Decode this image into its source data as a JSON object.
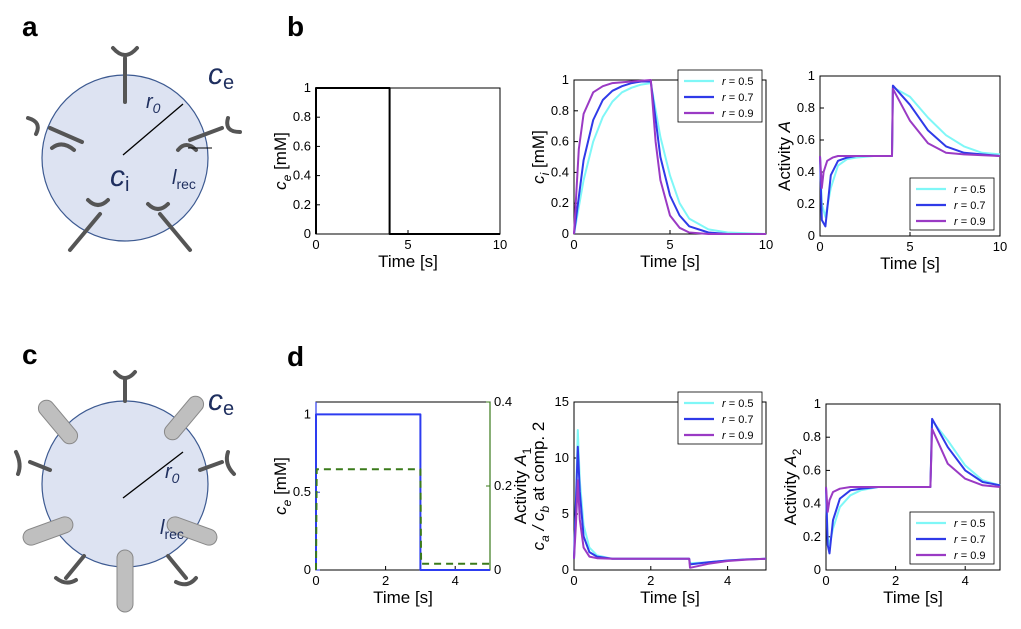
{
  "panel_letters": {
    "a": "a",
    "b": "b",
    "c": "c",
    "d": "d"
  },
  "diagram_a": {
    "outside_conc": "c",
    "outside_sub": "e",
    "inside_conc": "c",
    "inside_sub": "i",
    "radius": "r",
    "radius_sub": "0",
    "receptor_len": "l",
    "receptor_len_sub": "rec"
  },
  "diagram_c": {
    "outside_conc": "c",
    "outside_sub": "e",
    "radius": "r",
    "radius_sub": "0",
    "receptor_len": "l",
    "receptor_len_sub": "rec"
  },
  "colors": {
    "r05": "#7ff7f7",
    "r07": "#2f3ae8",
    "r09": "#9a3ac4",
    "step": "#000000",
    "step_d": "#2d3cf0",
    "activity_d": "#3a7a1a"
  },
  "chart_data": [
    {
      "id": "b1",
      "type": "line",
      "xlabel": "Time [s]",
      "ylabel_main": "c",
      "ylabel_sub": "e",
      "ylabel_unit": " [mM]",
      "xlim": [
        0,
        10
      ],
      "ylim": [
        0,
        1
      ],
      "xticks": [
        "0",
        "5",
        "10"
      ],
      "xtick_values": [
        0,
        5,
        10
      ],
      "yticks": [
        "0",
        "0.2",
        "0.4",
        "0.6",
        "0.8",
        "1"
      ],
      "ytick_values": [
        0,
        0.2,
        0.4,
        0.6,
        0.8,
        1
      ],
      "series": [
        {
          "name": "c_e",
          "x": [
            0,
            0,
            4,
            4,
            10
          ],
          "y": [
            0,
            1,
            1,
            0,
            0
          ]
        }
      ]
    },
    {
      "id": "b2",
      "type": "line",
      "xlabel": "Time [s]",
      "ylabel_main": "c",
      "ylabel_sub": "i",
      "ylabel_unit": " [mM]",
      "xlim": [
        0,
        10
      ],
      "ylim": [
        0,
        1
      ],
      "xticks": [
        "0",
        "5",
        "10"
      ],
      "xtick_values": [
        0,
        5,
        10
      ],
      "yticks": [
        "0",
        "0.2",
        "0.4",
        "0.6",
        "0.8",
        "1"
      ],
      "ytick_values": [
        0,
        0.2,
        0.4,
        0.6,
        0.8,
        1
      ],
      "legend": [
        "r = 0.5",
        "r = 0.7",
        "r = 0.9"
      ],
      "legend_position": "top-right",
      "series": [
        {
          "name": "r = 0.5",
          "x": [
            0,
            0.5,
            1,
            1.5,
            2,
            2.5,
            3,
            3.5,
            4,
            4.5,
            5,
            5.5,
            6,
            7,
            8,
            10
          ],
          "y": [
            0,
            0.35,
            0.6,
            0.76,
            0.86,
            0.92,
            0.95,
            0.97,
            0.98,
            0.63,
            0.38,
            0.2,
            0.1,
            0.03,
            0.01,
            0
          ]
        },
        {
          "name": "r = 0.7",
          "x": [
            0,
            0.5,
            1,
            1.5,
            2,
            2.5,
            3,
            3.5,
            4,
            4.5,
            5,
            5.5,
            6,
            7,
            8,
            10
          ],
          "y": [
            0,
            0.48,
            0.74,
            0.87,
            0.93,
            0.96,
            0.98,
            0.99,
            0.99,
            0.5,
            0.25,
            0.12,
            0.05,
            0.01,
            0,
            0
          ]
        },
        {
          "name": "r = 0.9",
          "x": [
            0,
            0.25,
            0.5,
            1,
            1.5,
            2,
            3,
            4,
            4.25,
            4.5,
            5,
            5.5,
            6,
            7,
            10
          ],
          "y": [
            0,
            0.55,
            0.78,
            0.92,
            0.96,
            0.98,
            0.99,
            1.0,
            0.6,
            0.35,
            0.12,
            0.04,
            0.01,
            0,
            0
          ]
        }
      ]
    },
    {
      "id": "b3",
      "type": "line",
      "xlabel": "Time [s]",
      "ylabel_main": "Activity",
      "ylabel_italic": "A",
      "xlim": [
        0,
        10
      ],
      "ylim": [
        0,
        1
      ],
      "xticks": [
        "0",
        "5",
        "10"
      ],
      "xtick_values": [
        0,
        5,
        10
      ],
      "yticks": [
        "0",
        "0.2",
        "0.4",
        "0.6",
        "0.8",
        "1"
      ],
      "ytick_values": [
        0,
        0.2,
        0.4,
        0.6,
        0.8,
        1
      ],
      "legend": [
        "r = 0.5",
        "r = 0.7",
        "r = 0.9"
      ],
      "legend_position": "bottom-right",
      "series": [
        {
          "name": "r = 0.5",
          "x": [
            0,
            0.1,
            0.3,
            0.6,
            1,
            1.5,
            2,
            3,
            4,
            4.05,
            5,
            6,
            7,
            8,
            9,
            10
          ],
          "y": [
            0.5,
            0.2,
            0.12,
            0.3,
            0.44,
            0.48,
            0.49,
            0.5,
            0.5,
            0.93,
            0.87,
            0.74,
            0.63,
            0.56,
            0.52,
            0.51
          ]
        },
        {
          "name": "r = 0.7",
          "x": [
            0,
            0.1,
            0.3,
            0.6,
            1,
            1.5,
            2,
            3,
            4,
            4.05,
            5,
            6,
            7,
            8,
            9,
            10
          ],
          "y": [
            0.5,
            0.1,
            0.06,
            0.38,
            0.47,
            0.49,
            0.5,
            0.5,
            0.5,
            0.94,
            0.82,
            0.66,
            0.56,
            0.52,
            0.51,
            0.5
          ]
        },
        {
          "name": "r = 0.9",
          "x": [
            0,
            0.1,
            0.2,
            0.4,
            0.7,
            1,
            2,
            3,
            4,
            4.05,
            5,
            6,
            7,
            8,
            10
          ],
          "y": [
            0.5,
            0.3,
            0.4,
            0.47,
            0.49,
            0.5,
            0.5,
            0.5,
            0.5,
            0.92,
            0.72,
            0.58,
            0.52,
            0.51,
            0.5
          ]
        }
      ]
    },
    {
      "id": "d1",
      "type": "line",
      "xlabel": "Time [s]",
      "ylabel_main": "c",
      "ylabel_sub": "e",
      "ylabel_unit": " [mM]",
      "y2label_main": "Activity",
      "y2label_italic": "A",
      "y2label_sub": "1",
      "xlim": [
        0,
        5
      ],
      "ylim": [
        0,
        1.08
      ],
      "y2lim": [
        0,
        0.4
      ],
      "xticks": [
        "0",
        "2",
        "4"
      ],
      "xtick_values": [
        0,
        2,
        4
      ],
      "yticks": [
        "0",
        "0.5",
        "1"
      ],
      "ytick_values": [
        0,
        0.5,
        1
      ],
      "y2ticks": [
        "0",
        "0.2",
        "0.4"
      ],
      "y2tick_values": [
        0,
        0.2,
        0.4
      ],
      "series": [
        {
          "name": "c_e",
          "axis": "left",
          "x": [
            0,
            0,
            3,
            3,
            5
          ],
          "y": [
            0,
            1,
            1,
            0,
            0
          ]
        },
        {
          "name": "A_1",
          "axis": "right",
          "style": "dashed",
          "x": [
            0,
            0.02,
            3,
            3.02,
            5
          ],
          "y": [
            0,
            0.24,
            0.24,
            0.015,
            0.015
          ]
        }
      ]
    },
    {
      "id": "d2",
      "type": "line",
      "xlabel": "Time [s]",
      "ylabel_main": "c",
      "ylabel_sub": "a",
      "ylabel_mid": " / c",
      "ylabel_sub2": "b",
      "ylabel_unit": " at comp. 2",
      "xlim": [
        0,
        5
      ],
      "ylim": [
        0,
        15
      ],
      "xticks": [
        "0",
        "2",
        "4"
      ],
      "xtick_values": [
        0,
        2,
        4
      ],
      "yticks": [
        "0",
        "5",
        "10",
        "15"
      ],
      "ytick_values": [
        0,
        5,
        10,
        15
      ],
      "legend": [
        "r = 0.5",
        "r = 0.7",
        "r = 0.9"
      ],
      "legend_position": "top-right",
      "series": [
        {
          "name": "r = 0.5",
          "x": [
            0,
            0.05,
            0.1,
            0.15,
            0.25,
            0.4,
            0.6,
            1,
            2,
            3,
            3.02,
            3.5,
            4,
            4.5,
            5
          ],
          "y": [
            1,
            6,
            12.5,
            8,
            4,
            2,
            1.3,
            1,
            1,
            1,
            0.6,
            0.7,
            0.85,
            0.95,
            1
          ]
        },
        {
          "name": "r = 0.7",
          "x": [
            0,
            0.05,
            0.1,
            0.15,
            0.25,
            0.4,
            0.6,
            1,
            2,
            3,
            3.02,
            3.5,
            4,
            4.5,
            5
          ],
          "y": [
            1,
            6,
            11,
            7,
            3,
            1.6,
            1.2,
            1,
            1,
            1,
            0.5,
            0.7,
            0.85,
            0.95,
            1
          ]
        },
        {
          "name": "r = 0.9",
          "x": [
            0,
            0.05,
            0.1,
            0.15,
            0.25,
            0.4,
            0.6,
            1,
            2,
            3,
            3.02,
            3.5,
            4,
            4.5,
            5
          ],
          "y": [
            1,
            4,
            8,
            4.5,
            2,
            1.2,
            1.05,
            1,
            1,
            1,
            0.2,
            0.55,
            0.8,
            0.93,
            1
          ]
        }
      ]
    },
    {
      "id": "d3",
      "type": "line",
      "xlabel": "Time [s]",
      "ylabel_main": "Activity",
      "ylabel_italic": "A",
      "ylabel_sub": "2",
      "xlim": [
        0,
        5
      ],
      "ylim": [
        0,
        1
      ],
      "xticks": [
        "0",
        "2",
        "4"
      ],
      "xtick_values": [
        0,
        2,
        4
      ],
      "yticks": [
        "0",
        "0.2",
        "0.4",
        "0.6",
        "0.8",
        "1"
      ],
      "ytick_values": [
        0,
        0.2,
        0.4,
        0.6,
        0.8,
        1
      ],
      "legend": [
        "r = 0.5",
        "r = 0.7",
        "r = 0.9"
      ],
      "legend_position": "bottom-right",
      "series": [
        {
          "name": "r = 0.5",
          "x": [
            0,
            0.05,
            0.1,
            0.2,
            0.4,
            0.7,
            1,
            1.5,
            2,
            3,
            3.05,
            3.5,
            4,
            4.5,
            5
          ],
          "y": [
            0.5,
            0.2,
            0.15,
            0.25,
            0.38,
            0.45,
            0.48,
            0.5,
            0.5,
            0.5,
            0.9,
            0.78,
            0.63,
            0.54,
            0.51
          ]
        },
        {
          "name": "r = 0.7",
          "x": [
            0,
            0.05,
            0.1,
            0.2,
            0.4,
            0.7,
            1,
            1.5,
            2,
            3,
            3.05,
            3.5,
            4,
            4.5,
            5
          ],
          "y": [
            0.5,
            0.15,
            0.1,
            0.3,
            0.43,
            0.48,
            0.49,
            0.5,
            0.5,
            0.5,
            0.91,
            0.74,
            0.6,
            0.53,
            0.51
          ]
        },
        {
          "name": "r = 0.9",
          "x": [
            0,
            0.05,
            0.1,
            0.2,
            0.4,
            0.7,
            1,
            2,
            3,
            3.05,
            3.5,
            4,
            4.5,
            5
          ],
          "y": [
            0.5,
            0.35,
            0.42,
            0.47,
            0.49,
            0.5,
            0.5,
            0.5,
            0.5,
            0.85,
            0.64,
            0.55,
            0.51,
            0.5
          ]
        }
      ]
    }
  ]
}
